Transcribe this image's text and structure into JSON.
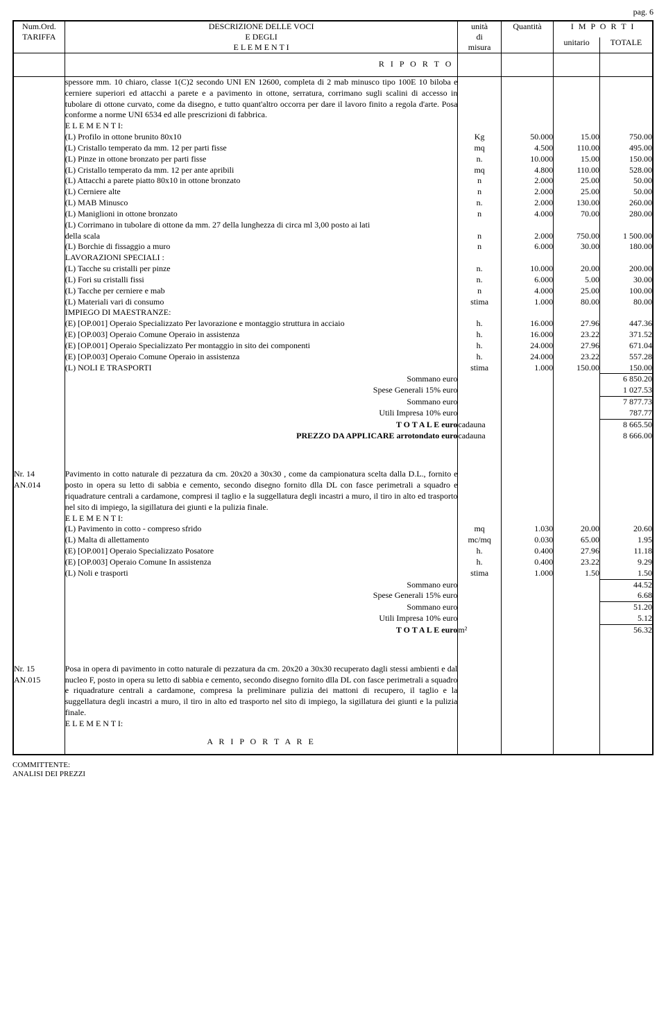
{
  "page_label": "pag. 6",
  "header": {
    "col_num_1": "Num.Ord.",
    "col_num_2": "TARIFFA",
    "col_desc_1": "DESCRIZIONE DELLE VOCI",
    "col_desc_2": "E DEGLI",
    "col_desc_3": "E L E M E N T I",
    "col_unit_1": "unità",
    "col_unit_2": "di",
    "col_unit_3": "misura",
    "col_qty": "Quantità",
    "col_imp": "I M P O R T I",
    "col_unitp": "unitario",
    "col_tot": "TOTALE"
  },
  "riporto": "R I P O R T O",
  "item13": {
    "desc": "spessore mm. 10 chiaro, classe 1(C)2 secondo UNI EN 12600, completa di 2  mab minusco tipo 100E 10 biloba e cerniere superiori ed attacchi a parete e a pavimento in ottone, serratura, corrimano sugli scalini di accesso in tubolare di ottone curvato, come da disegno,  e tutto quant'altro occorra per dare il lavoro finito a regola d'arte. Posa conforme a norme UNI 6534 ed alle prescrizioni di fabbrica.",
    "elementi_label": "E L E M E N T I:",
    "rows": [
      {
        "d": "(L)  Profilo in ottone brunito 80x10",
        "u": "Kg",
        "q": "50.000",
        "p": "15.00",
        "t": "750.00"
      },
      {
        "d": "(L)  Cristallo temperato da mm. 12  per parti fisse",
        "u": "mq",
        "q": "4.500",
        "p": "110.00",
        "t": "495.00"
      },
      {
        "d": "(L)  Pinze in ottone bronzato per parti fisse",
        "u": "n.",
        "q": "10.000",
        "p": "15.00",
        "t": "150.00"
      },
      {
        "d": "(L)  Cristallo temperato da mm. 12 per ante apribili",
        "u": "mq",
        "q": "4.800",
        "p": "110.00",
        "t": "528.00"
      },
      {
        "d": "(L)  Attacchi a parete piatto 80x10 in ottone bronzato",
        "u": "n",
        "q": "2.000",
        "p": "25.00",
        "t": "50.00"
      },
      {
        "d": "(L)  Cerniere alte",
        "u": "n",
        "q": "2.000",
        "p": "25.00",
        "t": "50.00"
      },
      {
        "d": "(L)  MAB  Minusco",
        "u": "n.",
        "q": "2.000",
        "p": "130.00",
        "t": "260.00"
      },
      {
        "d": "(L)  Maniglioni in ottone bronzato",
        "u": "n",
        "q": "4.000",
        "p": "70.00",
        "t": "280.00"
      },
      {
        "d": "(L)  Corrimano in tubolare di ottone  da mm. 27 della lunghezza di circa ml 3,00 posto ai lati",
        "u": "",
        "q": "",
        "p": "",
        "t": ""
      },
      {
        "d": "della scala",
        "u": "n",
        "q": "2.000",
        "p": "750.00",
        "t": "1 500.00"
      },
      {
        "d": "(L)  Borchie di fissaggio a muro",
        "u": "n",
        "q": "6.000",
        "p": "30.00",
        "t": "180.00"
      },
      {
        "d": "LAVORAZIONI SPECIALI :",
        "u": "",
        "q": "",
        "p": "",
        "t": ""
      },
      {
        "d": "(L)  Tacche su cristalli per pinze",
        "u": "n.",
        "q": "10.000",
        "p": "20.00",
        "t": "200.00"
      },
      {
        "d": "(L)  Fori su cristalli fissi",
        "u": "n.",
        "q": "6.000",
        "p": "5.00",
        "t": "30.00"
      },
      {
        "d": "(L)  Tacche per cerniere e mab",
        "u": "n",
        "q": "4.000",
        "p": "25.00",
        "t": "100.00"
      },
      {
        "d": "(L)  Materiali vari di consumo",
        "u": "stima",
        "q": "1.000",
        "p": "80.00",
        "t": "80.00"
      },
      {
        "d": "IMPIEGO DI MAESTRANZE:",
        "u": "",
        "q": "",
        "p": "",
        "t": ""
      },
      {
        "d": "(E) [OP.001] Operaio Specializzato  Per lavorazione e montaggio struttura in acciaio",
        "u": "h.",
        "q": "16.000",
        "p": "27.96",
        "t": "447.36"
      },
      {
        "d": "(E) [OP.003] Operaio Comune  Operaio in assistenza",
        "u": "h.",
        "q": "16.000",
        "p": "23.22",
        "t": "371.52"
      },
      {
        "d": "(E) [OP.001] Operaio Specializzato  Per montaggio in sito dei componenti",
        "u": "h.",
        "q": "24.000",
        "p": "27.96",
        "t": "671.04"
      },
      {
        "d": "(E) [OP.003] Operaio Comune  Operaio in assistenza",
        "u": "h.",
        "q": "24.000",
        "p": "23.22",
        "t": "557.28"
      },
      {
        "d": "(L)  NOLI E TRASPORTI",
        "u": "stima",
        "q": "1.000",
        "p": "150.00",
        "t": "150.00"
      }
    ],
    "sommano1_l": "Sommano euro",
    "sommano1_v": "6 850.20",
    "spese_l": "Spese Generali 15% euro",
    "spese_v": "1 027.53",
    "sommano2_l": "Sommano euro",
    "sommano2_v": "7 877.73",
    "utili_l": "Utili Impresa 10% euro",
    "utili_v": "787.77",
    "totale_l": "T O T A L E   euro",
    "totale_u": "cadauna",
    "totale_v": "8 665.50",
    "prezzo_l": "PREZZO DA APPLICARE arrotondato  euro",
    "prezzo_u": "cadauna",
    "prezzo_v": "8 666.00"
  },
  "item14": {
    "nr": "Nr. 14",
    "code": "AN.014",
    "desc": "Pavimento in cotto  naturale  di pezzatura da cm. 20x20 a 30x30 , come da campionatura scelta dalla D.L., fornito e posto in opera su letto di sabbia e cemento, secondo disegno fornito dlla DL con fasce perimetrali a squadro e riquadrature centrali a cardamone,  compresi il taglio e la suggellatura degli incastri a muro, il tiro in alto ed  trasporto nel sito di impiego, la sigillatura dei giunti e la pulizia finale.",
    "elementi_label": "E L E M E N T I:",
    "rows": [
      {
        "d": "(L)  Pavimento in cotto - compreso sfrido",
        "u": "mq",
        "q": "1.030",
        "p": "20.00",
        "t": "20.60"
      },
      {
        "d": "(L)  Malta di allettamento",
        "u": "mc/mq",
        "q": "0.030",
        "p": "65.00",
        "t": "1.95"
      },
      {
        "d": "(E) [OP.001] Operaio Specializzato  Posatore",
        "u": "h.",
        "q": "0.400",
        "p": "27.96",
        "t": "11.18"
      },
      {
        "d": "(E) [OP.003] Operaio Comune  In assistenza",
        "u": "h.",
        "q": "0.400",
        "p": "23.22",
        "t": "9.29"
      },
      {
        "d": "(L)  Noli e trasporti",
        "u": "stima",
        "q": "1.000",
        "p": "1.50",
        "t": "1.50"
      }
    ],
    "sommano1_l": "Sommano euro",
    "sommano1_v": "44.52",
    "spese_l": "Spese Generali 15% euro",
    "spese_v": "6.68",
    "sommano2_l": "Sommano euro",
    "sommano2_v": "51.20",
    "utili_l": "Utili Impresa 10% euro",
    "utili_v": "5.12",
    "totale_l": "T O T A L E   euro",
    "totale_u": "m²",
    "totale_v": "56.32"
  },
  "item15": {
    "nr": "Nr. 15",
    "code": "AN.015",
    "desc": "Posa in opera di pavimento in cotto naturale di pezzatura da cm. 20x20 a 30x30 recuperato dagli stessi ambienti e dal nucleo F,  posto in opera su letto di sabbia e cemento, secondo disegno fornito dlla DL con fasce perimetrali a squadro e riquadrature centrali a cardamone, compresa la preliminare pulizia  dei mattoni di recupero, il taglio e la suggellatura degli incastri a muro, il tiro in alto ed  trasporto nel sito di impiego, la sigillatura dei giunti e la pulizia finale.",
    "elementi_label": "E L E M E N T I:"
  },
  "riportare": "A   R I P O R T A R E",
  "committente_1": "COMMITTENTE:",
  "committente_2": "ANALISI DEI PREZZI"
}
